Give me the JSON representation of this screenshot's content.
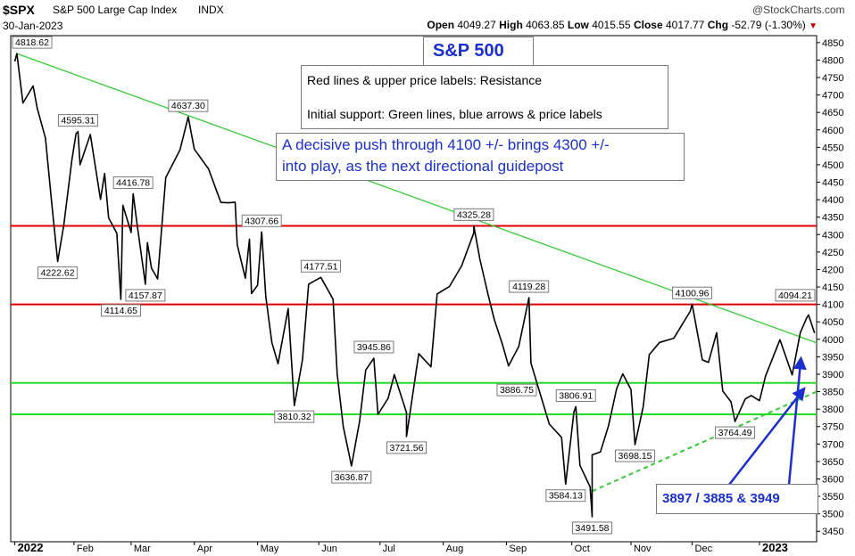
{
  "header": {
    "symbol": "$SPX",
    "name": "S&P 500 Large Cap Index",
    "exchange": "INDX",
    "source": "@StockCharts.com",
    "date": "30-Jan-2023",
    "open_label": "Open",
    "open": "4049.27",
    "high_label": "High",
    "high": "4063.85",
    "low_label": "Low",
    "low": "4015.55",
    "close_label": "Close",
    "close": "4017.77",
    "chg_label": "Chg",
    "chg": "-52.79 (-1.30%)",
    "chg_marker": "▼"
  },
  "annotations": {
    "title": "S&P 500",
    "legend_line1": "Red lines & upper price labels: Resistance",
    "legend_line2": "Initial support: Green lines, blue arrows & price labels",
    "note_line1": "A decisive push through 4100 +/- brings 4300 +/-",
    "note_line2": "into play, as the next directional guidepost",
    "support_box": "3897 / 3885 & 3949"
  },
  "colors": {
    "price": "#000000",
    "resistance": "#e00000",
    "support": "#22dd22",
    "downtrend": "#33cc33",
    "arrows": "#1a2fd0",
    "note_text": "#1a2fd0",
    "title_text": "#1a2fd0",
    "chg": "#cc0000"
  },
  "chart_data": {
    "type": "line",
    "y_axis": {
      "side": "right",
      "ylim": [
        3420,
        4870
      ],
      "ticks": [
        3450,
        3500,
        3550,
        3600,
        3650,
        3700,
        3750,
        3800,
        3850,
        3900,
        3950,
        4000,
        4050,
        4100,
        4150,
        4200,
        4250,
        4300,
        4350,
        4400,
        4450,
        4500,
        4550,
        4600,
        4650,
        4700,
        4750,
        4800,
        4850
      ]
    },
    "x_axis": {
      "labels": [
        "2022",
        "Feb",
        "Mar",
        "Apr",
        "May",
        "Jun",
        "Jul",
        "Aug",
        "Sep",
        "Oct",
        "Nov",
        "Dec",
        "2023"
      ]
    },
    "series": [
      {
        "values": [
          [
            "2022-01-03",
            4796
          ],
          [
            "2022-01-04",
            4818.62
          ],
          [
            "2022-01-07",
            4677
          ],
          [
            "2022-01-12",
            4726
          ],
          [
            "2022-01-14",
            4662
          ],
          [
            "2022-01-18",
            4577
          ],
          [
            "2022-01-21",
            4397
          ],
          [
            "2022-01-24",
            4222.62
          ],
          [
            "2022-01-27",
            4326
          ],
          [
            "2022-01-31",
            4515
          ],
          [
            "2022-02-02",
            4589
          ],
          [
            "2022-02-03",
            4595.31
          ],
          [
            "2022-02-04",
            4500
          ],
          [
            "2022-02-09",
            4587
          ],
          [
            "2022-02-14",
            4401
          ],
          [
            "2022-02-16",
            4475
          ],
          [
            "2022-02-18",
            4348
          ],
          [
            "2022-02-22",
            4304
          ],
          [
            "2022-02-24",
            4114.65
          ],
          [
            "2022-02-25",
            4384
          ],
          [
            "2022-03-01",
            4306
          ],
          [
            "2022-03-02",
            4416.78
          ],
          [
            "2022-03-04",
            4328
          ],
          [
            "2022-03-08",
            4157.87
          ],
          [
            "2022-03-09",
            4277
          ],
          [
            "2022-03-11",
            4204
          ],
          [
            "2022-03-14",
            4173
          ],
          [
            "2022-03-18",
            4463
          ],
          [
            "2022-03-25",
            4543
          ],
          [
            "2022-03-29",
            4637.3
          ],
          [
            "2022-04-01",
            4545
          ],
          [
            "2022-04-08",
            4488
          ],
          [
            "2022-04-14",
            4392
          ],
          [
            "2022-04-18",
            4391
          ],
          [
            "2022-04-21",
            4393
          ],
          [
            "2022-04-22",
            4271
          ],
          [
            "2022-04-26",
            4175
          ],
          [
            "2022-04-28",
            4287
          ],
          [
            "2022-04-29",
            4131
          ],
          [
            "2022-05-02",
            4155
          ],
          [
            "2022-05-04",
            4307.66
          ],
          [
            "2022-05-06",
            4123
          ],
          [
            "2022-05-09",
            3991
          ],
          [
            "2022-05-12",
            3930
          ],
          [
            "2022-05-17",
            4088
          ],
          [
            "2022-05-20",
            3810.32
          ],
          [
            "2022-05-24",
            3941
          ],
          [
            "2022-05-27",
            4158
          ],
          [
            "2022-06-02",
            4177.51
          ],
          [
            "2022-06-08",
            4115
          ],
          [
            "2022-06-10",
            3901
          ],
          [
            "2022-06-13",
            3750
          ],
          [
            "2022-06-16",
            3666
          ],
          [
            "2022-06-17",
            3636.87
          ],
          [
            "2022-06-21",
            3765
          ],
          [
            "2022-06-24",
            3912
          ],
          [
            "2022-06-28",
            3945.86
          ],
          [
            "2022-06-30",
            3785
          ],
          [
            "2022-07-05",
            3831
          ],
          [
            "2022-07-08",
            3899
          ],
          [
            "2022-07-14",
            3790
          ],
          [
            "2022-07-14",
            3721.56
          ],
          [
            "2022-07-20",
            3959
          ],
          [
            "2022-07-26",
            3921
          ],
          [
            "2022-07-29",
            4130
          ],
          [
            "2022-08-04",
            4151
          ],
          [
            "2022-08-10",
            4210
          ],
          [
            "2022-08-16",
            4305
          ],
          [
            "2022-08-16",
            4325.28
          ],
          [
            "2022-08-19",
            4228
          ],
          [
            "2022-08-23",
            4128
          ],
          [
            "2022-08-26",
            4057
          ],
          [
            "2022-08-30",
            3986
          ],
          [
            "2022-09-02",
            3924
          ],
          [
            "2022-09-07",
            3979
          ],
          [
            "2022-09-12",
            4119.28
          ],
          [
            "2022-09-13",
            3932
          ],
          [
            "2022-09-16",
            3873
          ],
          [
            "2022-09-22",
            3757
          ],
          [
            "2022-09-28",
            3719
          ],
          [
            "2022-09-30",
            3585
          ],
          [
            "2022-10-04",
            3791
          ],
          [
            "2022-10-05",
            3806.91
          ],
          [
            "2022-10-07",
            3639
          ],
          [
            "2022-10-12",
            3577
          ],
          [
            "2022-10-13",
            3491.58
          ],
          [
            "2022-10-13",
            3669
          ],
          [
            "2022-10-17",
            3677
          ],
          [
            "2022-10-21",
            3752
          ],
          [
            "2022-10-25",
            3859
          ],
          [
            "2022-10-28",
            3901
          ],
          [
            "2022-11-01",
            3856
          ],
          [
            "2022-11-03",
            3698.15
          ],
          [
            "2022-11-07",
            3807
          ],
          [
            "2022-11-10",
            3956
          ],
          [
            "2022-11-15",
            3991
          ],
          [
            "2022-11-22",
            4003
          ],
          [
            "2022-11-30",
            4080
          ],
          [
            "2022-12-01",
            4100.96
          ],
          [
            "2022-12-06",
            3941
          ],
          [
            "2022-12-09",
            3934
          ],
          [
            "2022-12-13",
            4019
          ],
          [
            "2022-12-16",
            3852
          ],
          [
            "2022-12-20",
            3821
          ],
          [
            "2022-12-22",
            3764.49
          ],
          [
            "2022-12-27",
            3829
          ],
          [
            "2022-12-30",
            3839
          ],
          [
            "2023-01-03",
            3824
          ],
          [
            "2023-01-06",
            3895
          ],
          [
            "2023-01-11",
            3969
          ],
          [
            "2023-01-13",
            3999
          ],
          [
            "2023-01-19",
            3898
          ],
          [
            "2023-01-23",
            4019
          ],
          [
            "2023-01-26",
            4060
          ],
          [
            "2023-01-27",
            4070
          ],
          [
            "2023-01-30",
            4017.77
          ]
        ]
      }
    ],
    "price_labels": [
      {
        "date": "2022-01-04",
        "value": "4818.62",
        "pos": "above"
      },
      {
        "date": "2022-01-24",
        "value": "4222.62",
        "pos": "below"
      },
      {
        "date": "2022-02-03",
        "value": "4595.31",
        "pos": "above"
      },
      {
        "date": "2022-02-24",
        "value": "4114.65",
        "pos": "below"
      },
      {
        "date": "2022-03-02",
        "value": "4416.78",
        "pos": "above"
      },
      {
        "date": "2022-03-08",
        "value": "4157.87",
        "pos": "below"
      },
      {
        "date": "2022-03-29",
        "value": "4637.30",
        "pos": "above"
      },
      {
        "date": "2022-05-04",
        "value": "4307.66",
        "pos": "above"
      },
      {
        "date": "2022-05-20",
        "value": "3810.32",
        "pos": "below"
      },
      {
        "date": "2022-06-02",
        "value": "4177.51",
        "pos": "above"
      },
      {
        "date": "2022-06-17",
        "value": "3636.87",
        "pos": "below"
      },
      {
        "date": "2022-06-28",
        "value": "3945.86",
        "pos": "above"
      },
      {
        "date": "2022-07-14",
        "value": "3721.56",
        "pos": "below"
      },
      {
        "date": "2022-08-16",
        "value": "4325.28",
        "pos": "above"
      },
      {
        "date": "2022-09-12",
        "value": "4119.28",
        "pos": "above"
      },
      {
        "date": "2022-09-06",
        "value": "3886.75",
        "pos": "below"
      },
      {
        "date": "2022-10-05",
        "value": "3806.91",
        "pos": "above"
      },
      {
        "date": "2022-09-30",
        "value": "3584.13",
        "pos": "below"
      },
      {
        "date": "2022-10-13",
        "value": "3491.58",
        "pos": "below"
      },
      {
        "date": "2022-11-03",
        "value": "3698.15",
        "pos": "below"
      },
      {
        "date": "2022-12-01",
        "value": "4100.96",
        "pos": "above"
      },
      {
        "date": "2022-12-22",
        "value": "3764.49",
        "pos": "below"
      },
      {
        "date": "2023-01-27",
        "value": "4094.21",
        "pos": "above"
      }
    ],
    "horizontal_lines": [
      {
        "role": "resistance",
        "value": 4325
      },
      {
        "role": "resistance",
        "value": 4100
      },
      {
        "role": "support",
        "value": 3875
      },
      {
        "role": "support",
        "value": 3785
      }
    ],
    "trendlines": [
      {
        "role": "downtrend",
        "from": [
          "2022-01-04",
          4818.62
        ],
        "to": [
          "2023-01-31",
          3990
        ]
      },
      {
        "role": "uptrend-dashed",
        "from": [
          "2022-10-13",
          3565
        ],
        "to": [
          "2023-01-31",
          3850
        ]
      }
    ]
  }
}
